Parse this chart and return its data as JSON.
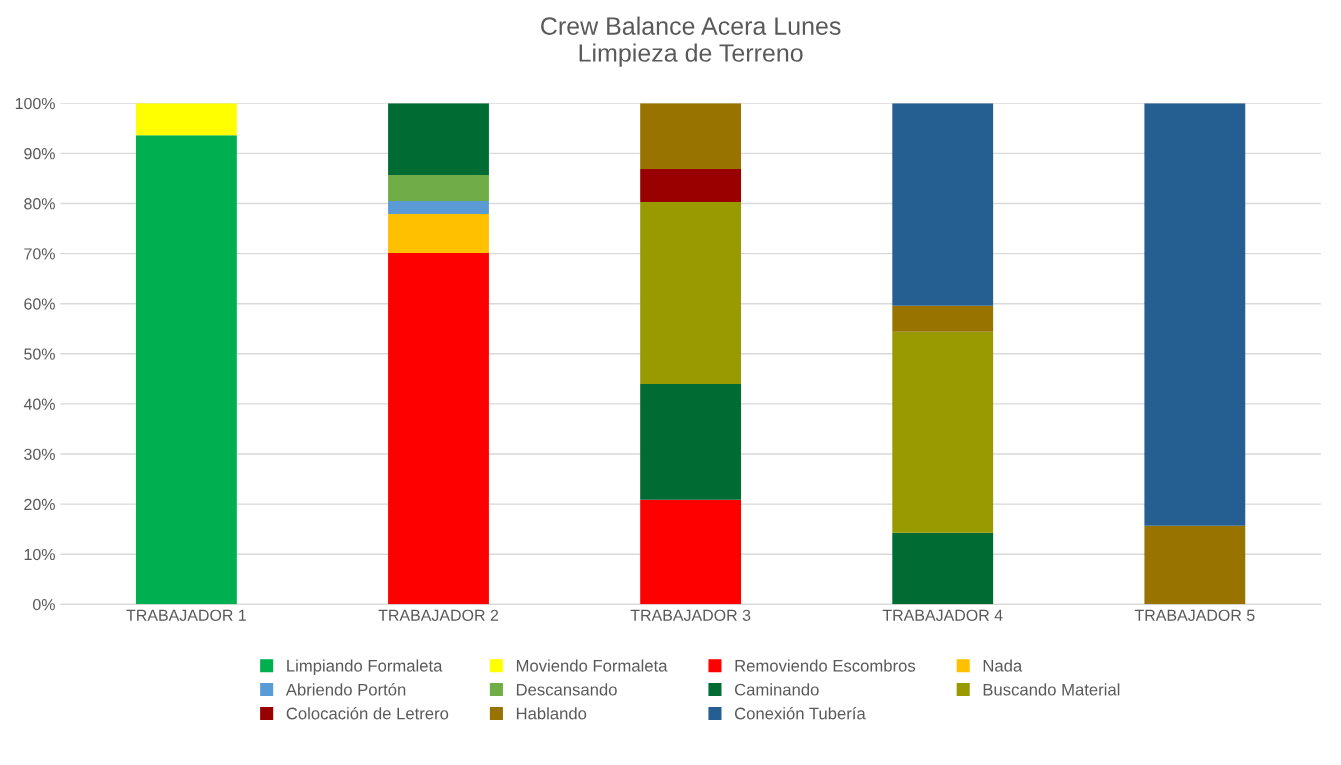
{
  "chart_data": {
    "type": "bar",
    "title": "Crew Balance Acera Lunes\nLimpieza de Terreno",
    "stacked": true,
    "categories": [
      "TRABAJADOR 1",
      "TRABAJADOR 2",
      "TRABAJADOR 3",
      "TRABAJADOR 4",
      "TRABAJADOR 5"
    ],
    "series": [
      {
        "name": "Limpiando Formaleta",
        "color": "#00b050",
        "values": [
          93.6,
          null,
          null,
          null,
          null
        ]
      },
      {
        "name": "Moviendo Formaleta",
        "color": "#ffff00",
        "values": [
          6.4,
          null,
          null,
          null,
          null
        ]
      },
      {
        "name": "Removiendo Escombros",
        "color": "#ff0000",
        "values": [
          null,
          70.1,
          20.9,
          null,
          null
        ]
      },
      {
        "name": "Nada",
        "color": "#ffc000",
        "values": [
          null,
          7.8,
          null,
          null,
          null
        ]
      },
      {
        "name": "Abriendo Portón",
        "color": "#5b9bd5",
        "values": [
          null,
          2.6,
          null,
          null,
          null
        ]
      },
      {
        "name": "Descansando",
        "color": "#70ad47",
        "values": [
          null,
          5.2,
          null,
          null,
          null
        ]
      },
      {
        "name": "Caminando",
        "color": "#006b33",
        "values": [
          null,
          14.3,
          23.1,
          14.3,
          null
        ]
      },
      {
        "name": "Buscando Material",
        "color": "#999900",
        "values": [
          null,
          null,
          36.3,
          40.1,
          null
        ]
      },
      {
        "name": "Colocación de Letrero",
        "color": "#990000",
        "values": [
          null,
          null,
          6.6,
          null,
          null
        ]
      },
      {
        "name": "Hablando",
        "color": "#997300",
        "values": [
          null,
          null,
          13.1,
          5.2,
          15.7
        ]
      },
      {
        "name": "Conexión Tubería",
        "color": "#255e91",
        "values": [
          null,
          null,
          null,
          40.4,
          84.3
        ]
      }
    ],
    "ylim": [
      0,
      100
    ],
    "yticks": [
      {
        "value": 0,
        "label": "0%"
      },
      {
        "value": 10,
        "label": "10%"
      },
      {
        "value": 20,
        "label": "20%"
      },
      {
        "value": 30,
        "label": "30%"
      },
      {
        "value": 40,
        "label": "40%"
      },
      {
        "value": 50,
        "label": "50%"
      },
      {
        "value": 60,
        "label": "60%"
      },
      {
        "value": 70,
        "label": "70%"
      },
      {
        "value": 80,
        "label": "80%"
      },
      {
        "value": 90,
        "label": "90%"
      },
      {
        "value": 100,
        "label": "100%"
      }
    ],
    "grid": "y",
    "legend": "bottom"
  }
}
